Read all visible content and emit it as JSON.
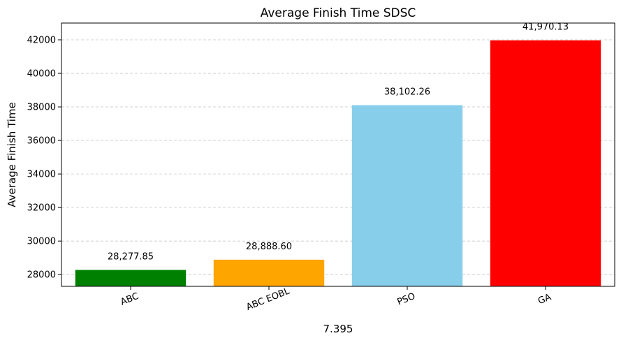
{
  "chart_data": {
    "type": "bar",
    "title": "Average Finish Time SDSC",
    "xlabel": "7.395",
    "ylabel": "Average Finish Time",
    "categories": [
      "ABC",
      "ABC EOBL",
      "PSO",
      "GA"
    ],
    "values": [
      28277.85,
      28888.6,
      38102.26,
      41970.13
    ],
    "value_labels": [
      "28,277.85",
      "28,888.60",
      "38,102.26",
      "41,970.13"
    ],
    "bar_colors": [
      "#008000",
      "#ffa500",
      "#87ceeb",
      "#ff0000"
    ],
    "ylim": [
      27300,
      43000
    ],
    "yticks": [
      28000,
      30000,
      32000,
      34000,
      36000,
      38000,
      40000,
      42000
    ],
    "grid": "y-dashed",
    "xtick_rotation": "slanted",
    "legend": "none"
  }
}
